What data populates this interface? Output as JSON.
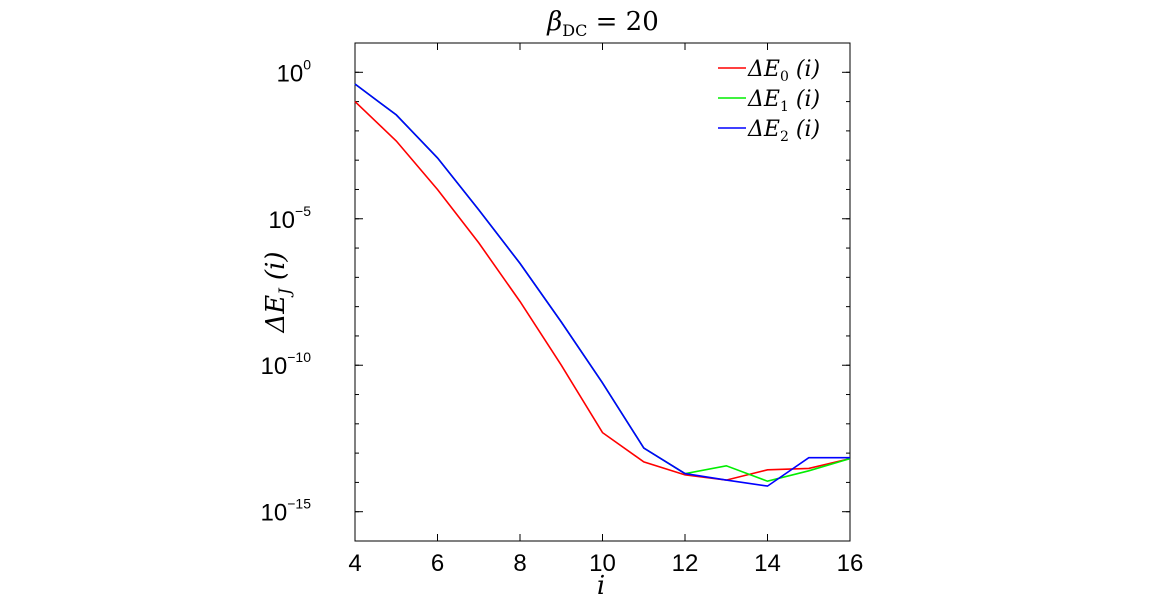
{
  "chart_data": {
    "type": "line",
    "title": {
      "symbol": "β",
      "subscript": "DC",
      "rest": " = 20"
    },
    "xlabel": "i",
    "ylabel": {
      "prefix": "ΔE",
      "subscript": "J",
      "suffix": " (i)"
    },
    "x_scale": "linear",
    "y_scale": "log",
    "xlim": [
      4,
      16
    ],
    "ylim": [
      1e-16,
      10
    ],
    "x_ticks": [
      4,
      6,
      8,
      10,
      12,
      14,
      16
    ],
    "x_tick_labels": [
      "4",
      "6",
      "8",
      "10",
      "12",
      "14",
      "16"
    ],
    "y_ticks": [
      {
        "value": 1,
        "base": "10",
        "exponent": "0"
      },
      {
        "value": 1e-05,
        "base": "10",
        "exponent": "−5"
      },
      {
        "value": 1e-10,
        "base": "10",
        "exponent": "−10"
      },
      {
        "value": 1e-15,
        "base": "10",
        "exponent": "−15"
      }
    ],
    "x": [
      4,
      5,
      6,
      7,
      8,
      9,
      10,
      11,
      12,
      13,
      14,
      15,
      16
    ],
    "series": [
      {
        "name": {
          "prefix": "ΔE",
          "subscript": "0",
          "suffix": " (i)"
        },
        "color": "#ff0000",
        "values": [
          0.1,
          0.0045,
          0.0001,
          1.5e-06,
          1.5e-08,
          1e-10,
          5e-13,
          5e-14,
          1.8e-14,
          1.2e-14,
          2.7e-14,
          3e-14,
          6.5e-14
        ]
      },
      {
        "name": {
          "prefix": "ΔE",
          "subscript": "1",
          "suffix": " (i)"
        },
        "color": "#00ee00",
        "values": [
          0.4,
          0.035,
          0.0012,
          2e-05,
          3e-07,
          3e-09,
          2.5e-11,
          1.5e-13,
          2e-14,
          3.7e-14,
          1.1e-14,
          2.5e-14,
          6.5e-14
        ]
      },
      {
        "name": {
          "prefix": "ΔE",
          "subscript": "2",
          "suffix": " (i)"
        },
        "color": "#0000ff",
        "values": [
          0.4,
          0.035,
          0.0012,
          2e-05,
          3e-07,
          3e-09,
          2.5e-11,
          1.5e-13,
          2e-14,
          1.2e-14,
          7.5e-15,
          7e-14,
          7e-14
        ]
      }
    ],
    "grid": false,
    "legend_position": "top-right"
  }
}
